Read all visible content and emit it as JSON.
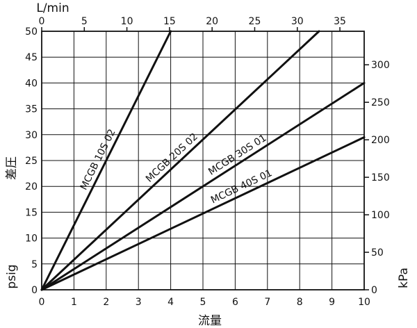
{
  "chart_data": {
    "type": "line",
    "axes": {
      "bottom": {
        "title": "流量",
        "min": 0,
        "max": 10,
        "ticks": [
          0,
          1,
          2,
          3,
          4,
          5,
          6,
          7,
          8,
          9,
          10
        ]
      },
      "top": {
        "title": "L/min",
        "min": 0,
        "max": 37.85,
        "ticks": [
          0,
          5,
          10,
          15,
          20,
          25,
          30,
          35
        ]
      },
      "left": {
        "title": "差圧",
        "unit_label": "psig",
        "min": 0,
        "max": 50,
        "ticks": [
          0,
          5,
          10,
          15,
          20,
          25,
          30,
          35,
          40,
          45,
          50
        ]
      },
      "right": {
        "title": "kPa",
        "min": 0,
        "max": 344.7,
        "ticks": [
          0,
          50,
          100,
          150,
          200,
          250,
          300
        ]
      }
    },
    "grid": true,
    "series": [
      {
        "name": "MCGB 10S 02",
        "points": [
          [
            0,
            0
          ],
          [
            4,
            50
          ]
        ]
      },
      {
        "name": "MCGB 20S 02",
        "points": [
          [
            0,
            0
          ],
          [
            8.6,
            50
          ]
        ]
      },
      {
        "name": "MCGB 30S 01",
        "points": [
          [
            0,
            0
          ],
          [
            10,
            40
          ]
        ]
      },
      {
        "name": "MCGB 40S 01",
        "points": [
          [
            0,
            0
          ],
          [
            10,
            29.5
          ]
        ]
      }
    ]
  }
}
